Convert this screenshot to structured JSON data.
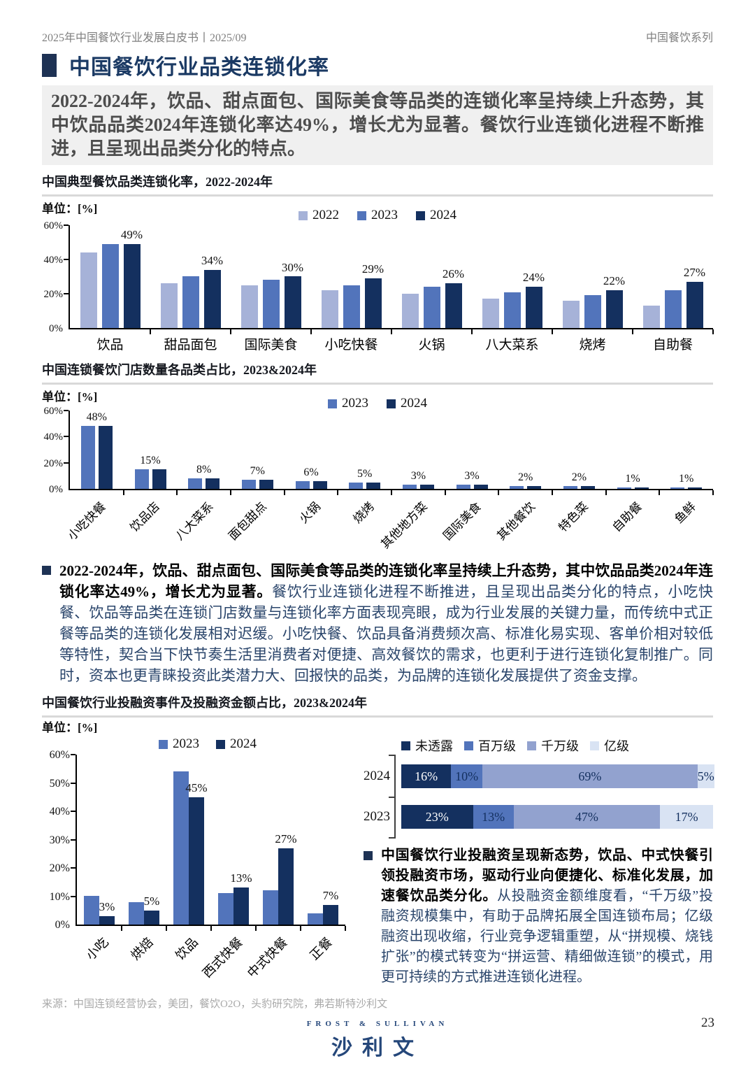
{
  "header": {
    "left": "2025年中国餐饮行业发展白皮书丨2025/09",
    "right": "中国餐饮系列"
  },
  "page": {
    "title": "中国餐饮行业品类连锁化率",
    "number": "23"
  },
  "summary": "2022-2024年，饮品、甜点面包、国际美食等品类的连锁化率呈持续上升态势，其中饮品品类2024年连锁化率达49%，增长尤为显著。餐饮行业连锁化进程不断推进，且呈现出品类分化的特点。",
  "bullets": {
    "b1_bold": "2022-2024年，饮品、甜点面包、国际美食等品类的连锁化率呈持续上升态势，其中饮品品类2024年连锁化率达49%，增长尤为显著。",
    "b1_rest": "餐饮行业连锁化进程不断推进，且呈现出品类分化的特点，小吃快餐、饮品等品类在连锁门店数量与连锁化率方面表现亮眼，成为行业发展的关键力量，而传统中式正餐等品类的连锁化发展相对迟缓。小吃快餐、饮品具备消费频次高、标准化易实现、客单价相对较低等特性，契合当下快节奏生活里消费者对便捷、高效餐饮的需求，也更利于进行连锁化复制推广。同时，资本也更青睐投资此类潜力大、回报快的品类，为品牌的连锁化发展提供了资金支撑。",
    "b2_bold": "中国餐饮行业投融资呈现新态势，饮品、中式快餐引领投融资市场，驱动行业向便捷化、标准化发展，加速餐饮品类分化。",
    "b2_rest": "从投融资金额维度看，“千万级”投融资规模集中，有助于品牌拓展全国连锁布局；亿级融资出现收缩，行业竞争逻辑重塑，从“拼规模、烧钱扩张”的模式转变为“拼运营、精细做连锁”的模式，用更可持续的方式推进连锁化进程。"
  },
  "source": "来源：中国连锁经营协会，美团，餐饮O2O，头豹研究院，弗若斯特沙利文",
  "footer": {
    "logo_top": "FROST & SULLIVAN",
    "logo_main": "沙利文"
  },
  "colors": {
    "navy": "#14305f",
    "mid_blue": "#5274bb",
    "light_blue": "#a6b2d8",
    "periwinkle": "#92a2cf",
    "pale_blue": "#d9e3f3",
    "accent_square": "#1e3254"
  },
  "chart_data": [
    {
      "type": "bar",
      "title": "中国典型餐饮品类连锁化率，2022-2024年",
      "unit_label": "单位：[%]",
      "categories": [
        "饮品",
        "甜品面包",
        "国际美食",
        "小吃快餐",
        "火锅",
        "八大菜系",
        "烧烤",
        "自助餐"
      ],
      "series": [
        {
          "name": "2022",
          "color": "#a6b2d8",
          "values": [
            44,
            26,
            25,
            22,
            20,
            17,
            16,
            13
          ]
        },
        {
          "name": "2023",
          "color": "#5274bb",
          "values": [
            49,
            30,
            28,
            25,
            24,
            21,
            19,
            22
          ]
        },
        {
          "name": "2024",
          "color": "#14305f",
          "values": [
            49,
            34,
            30,
            29,
            26,
            24,
            22,
            27
          ]
        }
      ],
      "value_labels": [
        "49%",
        "34%",
        "30%",
        "29%",
        "26%",
        "24%",
        "22%",
        "27%"
      ],
      "ylim": [
        0,
        60
      ],
      "yticks": [
        0,
        20,
        40,
        60
      ],
      "legend_position": "top-center",
      "rotated_labels": false
    },
    {
      "type": "bar",
      "title": "中国连锁餐饮门店数量各品类占比，2023&2024年",
      "unit_label": "单位：[%]",
      "categories": [
        "小吃快餐",
        "饮品店",
        "八大菜系",
        "面包甜点",
        "火锅",
        "烧烤",
        "其他地方菜",
        "国际美食",
        "其他餐饮",
        "特色菜",
        "自助餐",
        "鱼鲜"
      ],
      "series": [
        {
          "name": "2023",
          "color": "#5274bb",
          "values": [
            48,
            15,
            8,
            7,
            6,
            5,
            3,
            3,
            2,
            2,
            1,
            1
          ]
        },
        {
          "name": "2024",
          "color": "#14305f",
          "values": [
            48,
            15,
            8,
            7,
            6,
            5,
            3,
            3,
            2,
            2,
            1,
            1
          ]
        }
      ],
      "value_labels": [
        "48%",
        "15%",
        "8%",
        "7%",
        "6%",
        "5%",
        "3%",
        "3%",
        "2%",
        "2%",
        "1%",
        "1%"
      ],
      "ylim": [
        0,
        60
      ],
      "yticks": [
        0,
        20,
        40,
        60
      ],
      "legend_position": "top-center",
      "rotated_labels": true
    },
    {
      "type": "bar",
      "title": "中国餐饮行业投融资事件及投融资金额占比，2023&2024年",
      "unit_label": "单位：[%]",
      "categories": [
        "小吃",
        "烘焙",
        "饮品",
        "西式快餐",
        "中式快餐",
        "正餐"
      ],
      "series": [
        {
          "name": "2023",
          "color": "#5274bb",
          "values": [
            10,
            8,
            54,
            11,
            12,
            4
          ]
        },
        {
          "name": "2024",
          "color": "#14305f",
          "values": [
            3,
            5,
            45,
            13,
            27,
            7
          ]
        }
      ],
      "value_labels": [
        "3%",
        "5%",
        "45%",
        "13%",
        "27%",
        "7%"
      ],
      "ylim": [
        0,
        60
      ],
      "yticks": [
        0,
        10,
        20,
        30,
        40,
        50,
        60
      ],
      "legend_position": "top-center",
      "rotated_labels": true
    },
    {
      "type": "stacked_bar_horizontal",
      "title": "投融资金额占比",
      "categories": [
        "2024",
        "2023"
      ],
      "series": [
        {
          "name": "未透露",
          "color": "#14305f",
          "values": [
            16,
            23
          ]
        },
        {
          "name": "百万级",
          "color": "#5274bb",
          "values": [
            10,
            13
          ]
        },
        {
          "name": "千万级",
          "color": "#92a2cf",
          "values": [
            69,
            47
          ]
        },
        {
          "name": "亿级",
          "color": "#d9e3f3",
          "values": [
            5,
            17
          ]
        }
      ],
      "value_suffix": "%",
      "legend_position": "top"
    }
  ]
}
